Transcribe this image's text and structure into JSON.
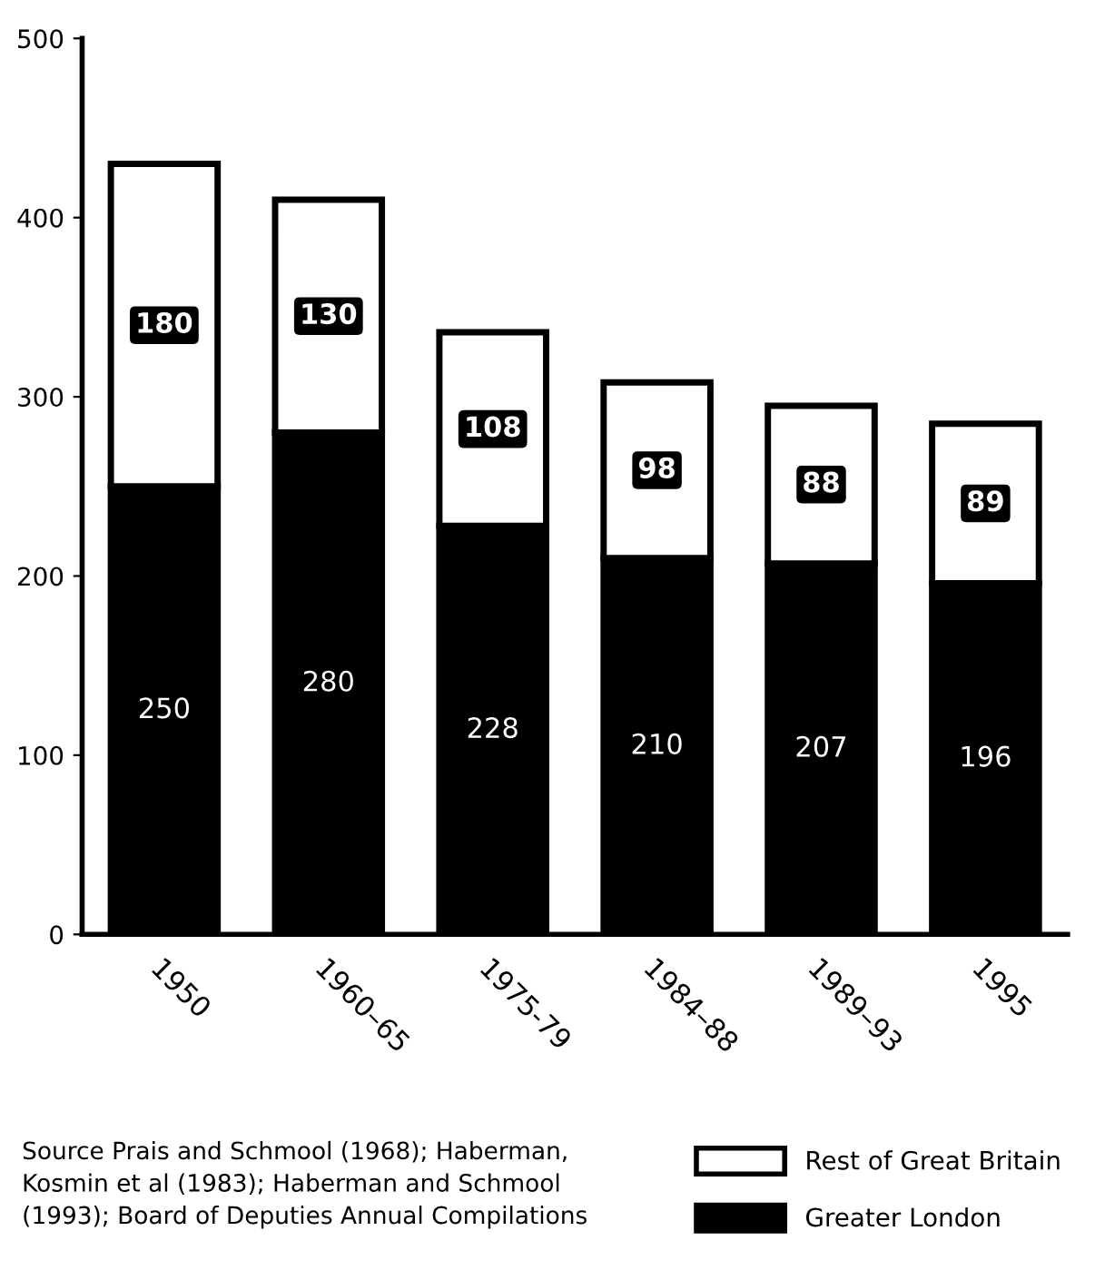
{
  "chart_data": {
    "type": "bar",
    "stacked": true,
    "categories": [
      "1950",
      "1960–65",
      "1975-79",
      "1984–88",
      "1989–93",
      "1995"
    ],
    "series": [
      {
        "name": "Greater London",
        "color": "#000000",
        "values": [
          250,
          280,
          228,
          210,
          207,
          196
        ]
      },
      {
        "name": "Rest of Great Britain",
        "color": "#ffffff",
        "values": [
          180,
          130,
          108,
          98,
          88,
          89
        ]
      }
    ],
    "ylim": [
      0,
      500
    ],
    "yticks": [
      0,
      100,
      200,
      300,
      400,
      500
    ],
    "grid": false,
    "legend": "bottom right",
    "data_labels": true,
    "annotations": [
      "Source Prais and Schmool (1968); Haberman,\nKosmin et al (1983); Haberman and Schmool\n(1993); Board of Deputies Annual Compilations"
    ]
  }
}
